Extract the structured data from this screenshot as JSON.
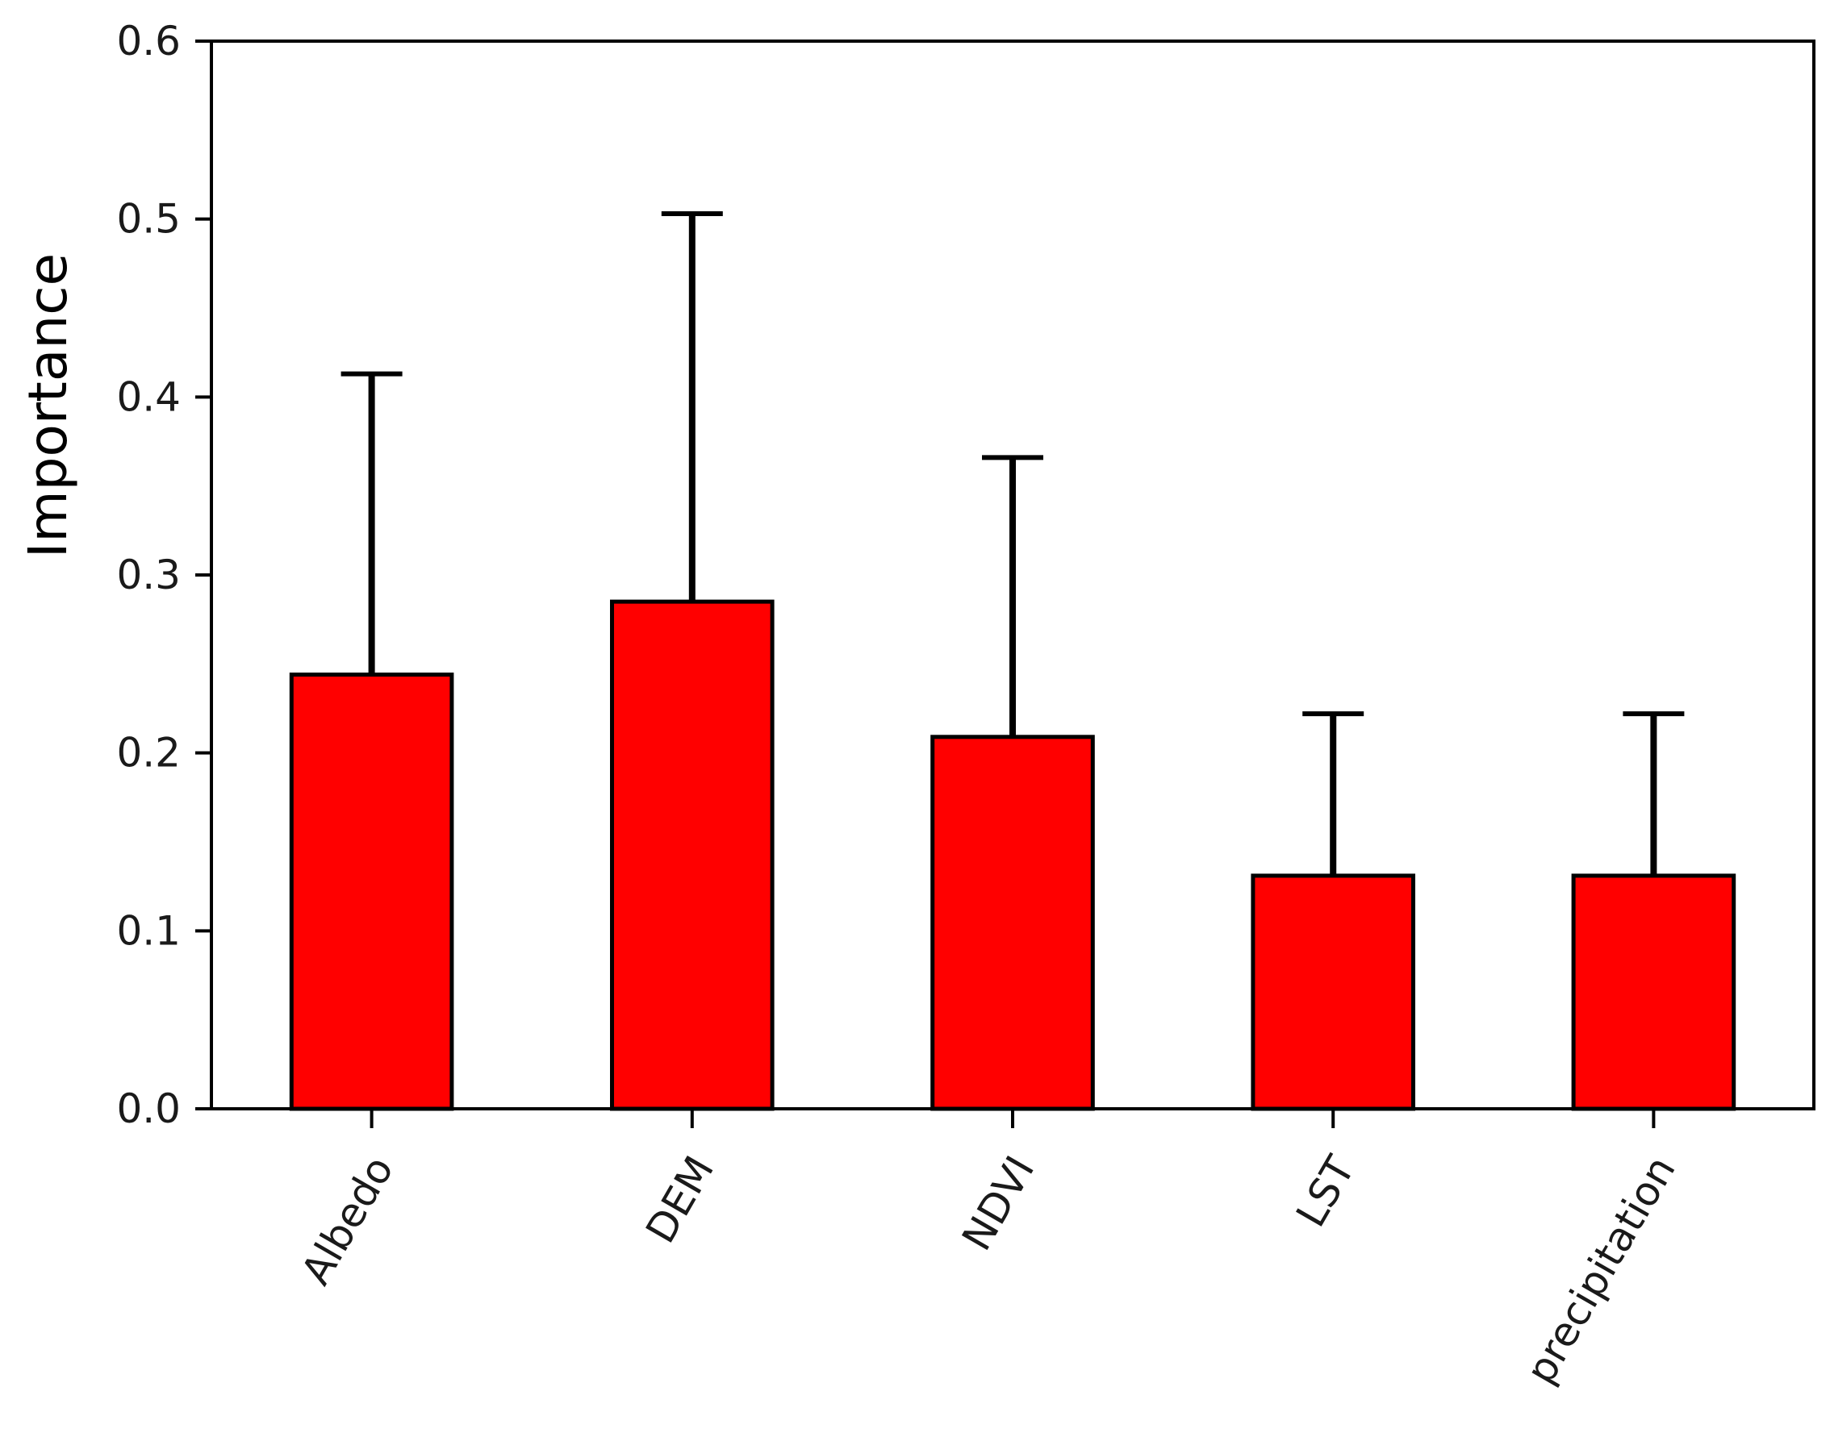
{
  "chart_data": {
    "type": "bar",
    "title": "",
    "xlabel": "",
    "ylabel": "Importance",
    "categories": [
      "Albedo",
      "DEM",
      "NDVI",
      "LST",
      "precipitation"
    ],
    "values": [
      0.244,
      0.285,
      0.209,
      0.131,
      0.131
    ],
    "error_upper": [
      0.413,
      0.503,
      0.366,
      0.222,
      0.222
    ],
    "ylim": [
      0,
      0.6
    ],
    "yticks": [
      "0.0",
      "0.1",
      "0.2",
      "0.3",
      "0.4",
      "0.5",
      "0.6"
    ],
    "grid": false,
    "legend": "none",
    "bar_color": "#ff0000",
    "edge_color": "#000000"
  }
}
